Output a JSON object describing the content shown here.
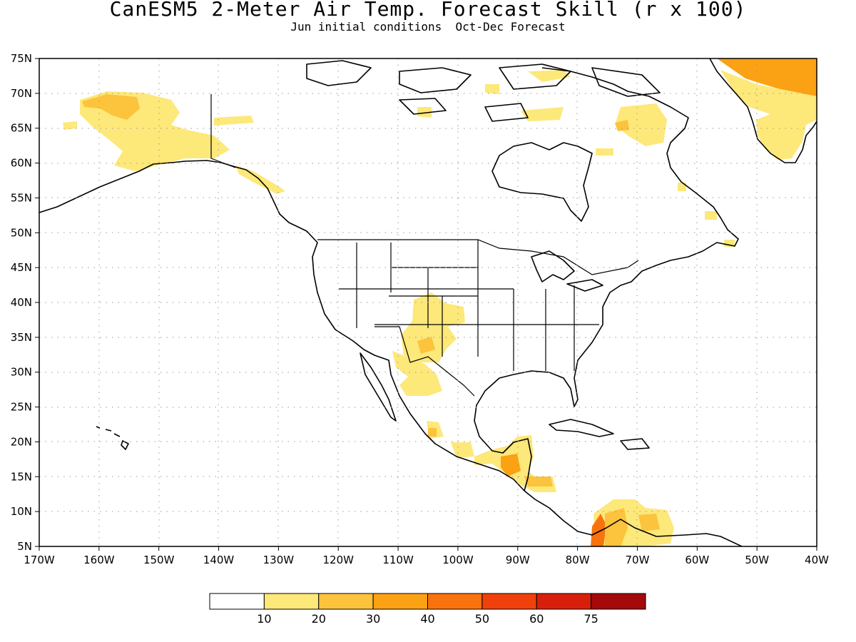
{
  "header": {
    "title": "CanESM5 2-Meter Air Temp. Forecast Skill (r x 100)",
    "subtitle": "Jun initial conditions  Oct-Dec Forecast"
  },
  "map": {
    "lon_range": [
      -170,
      -40
    ],
    "lat_range": [
      5,
      75
    ],
    "lon_ticks": [
      "170W",
      "160W",
      "150W",
      "140W",
      "130W",
      "120W",
      "110W",
      "100W",
      "90W",
      "80W",
      "70W",
      "60W",
      "50W",
      "40W"
    ],
    "lat_ticks": [
      "5N",
      "10N",
      "15N",
      "20N",
      "25N",
      "30N",
      "35N",
      "40N",
      "45N",
      "50N",
      "55N",
      "60N",
      "65N",
      "70N",
      "75N"
    ],
    "coastline_color": "#000000",
    "grid": "dotted"
  },
  "colorbar": {
    "colors": [
      "#ffffff",
      "#fde87a",
      "#fcc33c",
      "#fba114",
      "#f8730e",
      "#f0400c",
      "#d81f0c",
      "#a40a0a"
    ],
    "labels": [
      "10",
      "20",
      "30",
      "40",
      "50",
      "60",
      "75"
    ]
  },
  "skill_regions": [
    {
      "name": "alaska",
      "level": 1
    },
    {
      "name": "alaska-core",
      "level": 2
    },
    {
      "name": "greenland-north",
      "level": 3
    },
    {
      "name": "greenland-south",
      "level": 1
    },
    {
      "name": "colorado-newmexico",
      "level": 1
    },
    {
      "name": "texas-mexico",
      "level": 1
    },
    {
      "name": "central-america",
      "level": 2
    },
    {
      "name": "colombia-venezuela",
      "level": 1
    },
    {
      "name": "colombia-core",
      "level": 4
    }
  ]
}
